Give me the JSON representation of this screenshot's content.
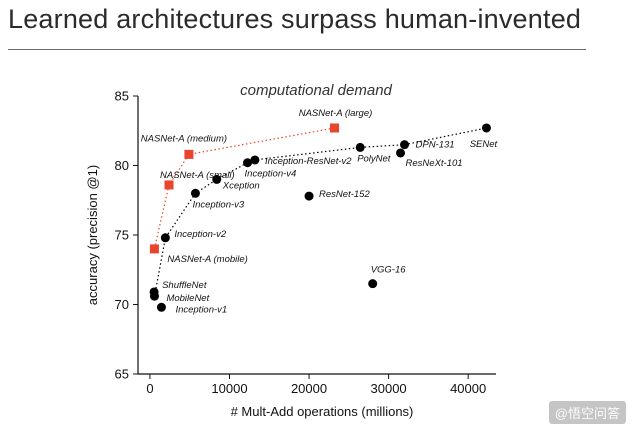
{
  "slide": {
    "title": "Learned architectures surpass human-invented",
    "watermark": "@悟空问答"
  },
  "chart_data": {
    "type": "scatter",
    "title": "computational demand",
    "xlabel": "# Mult-Add operations (millions)",
    "ylabel": "accuracy (precision @1)",
    "xlim": [
      -1500,
      43500
    ],
    "ylim": [
      65,
      85
    ],
    "xticks": [
      0,
      10000,
      20000,
      30000,
      40000
    ],
    "yticks": [
      65,
      70,
      75,
      80,
      85
    ],
    "grid": false,
    "colors": {
      "human": "#000000",
      "nasnet": "#e8452c"
    },
    "series": [
      {
        "group": "human",
        "points": [
          {
            "label": "ShuffleNet",
            "x": 524,
            "y": 70.9
          },
          {
            "label": "MobileNet",
            "x": 569,
            "y": 70.6
          },
          {
            "label": "Inception-v1",
            "x": 1448,
            "y": 69.8
          },
          {
            "label": "Inception-v2",
            "x": 1940,
            "y": 74.8
          },
          {
            "label": "Inception-v3",
            "x": 5720,
            "y": 78.0
          },
          {
            "label": "Xception",
            "x": 8400,
            "y": 79.0
          },
          {
            "label": "Inception-v4",
            "x": 12270,
            "y": 80.2
          },
          {
            "label": "Inception-ResNet-v2",
            "x": 13200,
            "y": 80.4
          },
          {
            "label": "ResNet-152",
            "x": 20000,
            "y": 77.8
          },
          {
            "label": "PolyNet",
            "x": 26430,
            "y": 81.3
          },
          {
            "label": "VGG-16",
            "x": 28000,
            "y": 71.5
          },
          {
            "label": "ResNeXt-101",
            "x": 31500,
            "y": 80.9
          },
          {
            "label": "DPN-131",
            "x": 32000,
            "y": 81.5
          },
          {
            "label": "SENet",
            "x": 42300,
            "y": 82.7
          }
        ]
      },
      {
        "group": "nasnet",
        "points": [
          {
            "label": "NASNet-A (mobile)",
            "x": 564,
            "y": 74.0
          },
          {
            "label": "NASNet-A (small)",
            "x": 2400,
            "y": 78.6
          },
          {
            "label": "NASNet-A (medium)",
            "x": 4900,
            "y": 80.8
          },
          {
            "label": "NASNet-A (large)",
            "x": 23200,
            "y": 82.7
          }
        ]
      }
    ],
    "frontiers": [
      {
        "group": "human",
        "points": [
          [
            569,
            70.6
          ],
          [
            1940,
            74.8
          ],
          [
            5720,
            78.0
          ],
          [
            8400,
            79.0
          ],
          [
            12270,
            80.2
          ],
          [
            13200,
            80.4
          ],
          [
            26430,
            81.3
          ],
          [
            32000,
            81.5
          ],
          [
            42300,
            82.7
          ]
        ]
      },
      {
        "group": "nasnet",
        "points": [
          [
            564,
            74.0
          ],
          [
            2400,
            78.6
          ],
          [
            4900,
            80.8
          ],
          [
            23200,
            82.7
          ]
        ]
      }
    ]
  }
}
